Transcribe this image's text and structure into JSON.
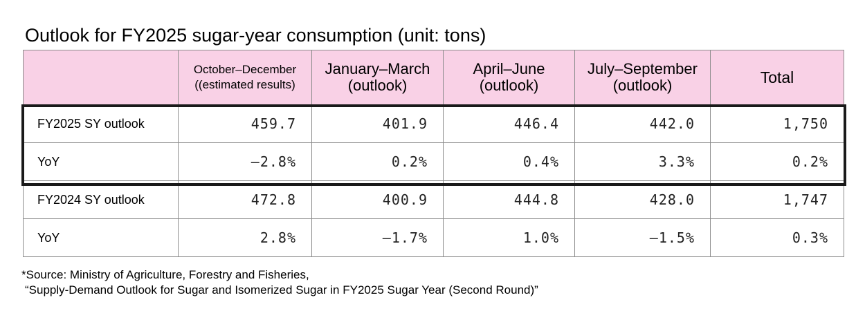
{
  "title": "Outlook for FY2025 sugar-year consumption (unit: tons)",
  "chart_data": {
    "type": "table",
    "title": "Outlook for FY2025 sugar-year consumption (unit: tons)",
    "columns": [
      {
        "line1": "",
        "line2": ""
      },
      {
        "line1": "October–December",
        "line2": "((estimated results)"
      },
      {
        "line1": "January–March",
        "line2": "(outlook)"
      },
      {
        "line1": "April–June",
        "line2": "(outlook)"
      },
      {
        "line1": "July–September",
        "line2": "(outlook)"
      },
      {
        "line1": "Total",
        "line2": ""
      }
    ],
    "rows": [
      {
        "label": "FY2025 SY outlook",
        "cells": [
          "459.7",
          "401.9",
          "446.4",
          "442.0",
          "1,750"
        ]
      },
      {
        "label": "YoY",
        "cells": [
          "—2.8%",
          "0.2%",
          "0.4%",
          "3.3%",
          "0.2%"
        ]
      },
      {
        "label": "FY2024 SY outlook",
        "cells": [
          "472.8",
          "400.9",
          "444.8",
          "428.0",
          "1,747"
        ]
      },
      {
        "label": "YoY",
        "cells": [
          "2.8%",
          "—1.7%",
          "1.0%",
          "—1.5%",
          "0.3%"
        ]
      }
    ],
    "highlighted_rows": [
      "FY2025 SY outlook",
      "YoY"
    ]
  },
  "source": {
    "line1": "*Source: Ministry of Agriculture, Forestry and Fisheries,",
    "line2": "“Supply-Demand Outlook for Sugar and Isomerized Sugar in FY2025 Sugar Year (Second Round)”"
  },
  "colors": {
    "header_background": "#f9d1e6",
    "grid_line": "#8c8c8c",
    "highlight_border": "#1a1a1a"
  }
}
